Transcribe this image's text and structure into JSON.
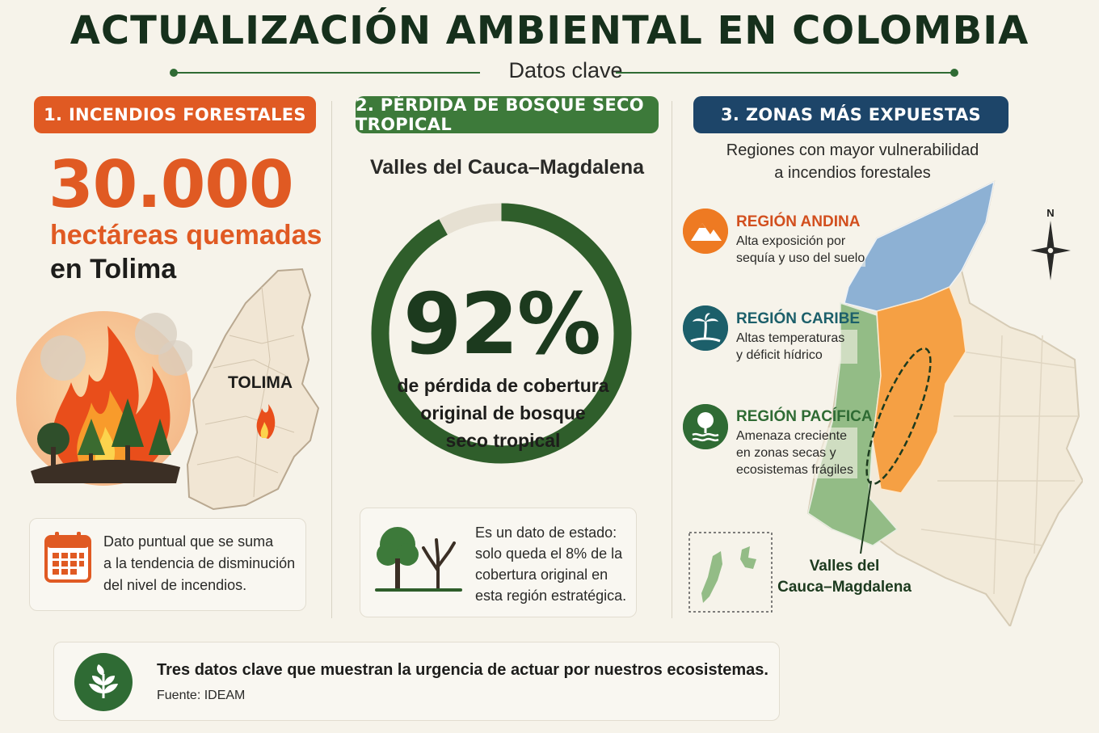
{
  "header": {
    "title": "ACTUALIZACIÓN AMBIENTAL EN COLOMBIA",
    "subtitle": "Datos clave"
  },
  "section1": {
    "heading": "1. INCENDIOS FORESTALES",
    "big_number": "30.000",
    "unit": "hectáreas quemadas",
    "place": "en Tolima",
    "map_label": "TOLIMA",
    "note_line1": "Dato puntual que se suma",
    "note_line2": "a la tendencia de disminución",
    "note_line3": "del nivel de incendios."
  },
  "section2": {
    "heading": "2. PÉRDIDA DE BOSQUE SECO TROPICAL",
    "region_title": "Valles del Cauca–Magdalena",
    "percent_label": "92%",
    "percent_value": 92,
    "desc_line1": "de pérdida de cobertura",
    "desc_line2": "original de bosque",
    "desc_line3": "seco tropical",
    "note_line1": "Es un dato de estado:",
    "note_line2": "solo queda el 8% de la",
    "note_line3": "cobertura original en",
    "note_line4": "esta región estratégica."
  },
  "section3": {
    "heading": "3. ZONAS MÁS EXPUESTAS",
    "sub_line1": "Regiones con mayor vulnerabilidad",
    "sub_line2": "a incendios forestales",
    "regions": [
      {
        "title": "REGIÓN ANDINA",
        "line1": "Alta exposición por",
        "line2": "sequía y uso del suelo",
        "icon": "mountain-icon",
        "color": "#ee7a22"
      },
      {
        "title": "REGIÓN CARIBE",
        "line1": "Altas temperaturas",
        "line2": "y déficit hídrico",
        "icon": "palm-tree-icon",
        "color": "#1c5f6a"
      },
      {
        "title": "REGIÓN PACÍFICA",
        "line1": "Amenaza creciente",
        "line2": "en zonas secas y",
        "line3": "ecosistemas frágiles",
        "icon": "tree-water-icon",
        "color": "#2f6b34"
      }
    ],
    "compass_label": "N",
    "map_label_line1": "Valles del",
    "map_label_line2": "Cauca–Magdalena"
  },
  "footer": {
    "text": "Tres datos clave que muestran la urgencia de actuar por nuestros ecosistemas.",
    "source": "Fuente: IDEAM"
  },
  "colors": {
    "orange": "#e05a23",
    "green": "#3d7a3a",
    "dark_green": "#1c3a1e",
    "navy": "#1d4569",
    "background": "#f6f3ea"
  }
}
